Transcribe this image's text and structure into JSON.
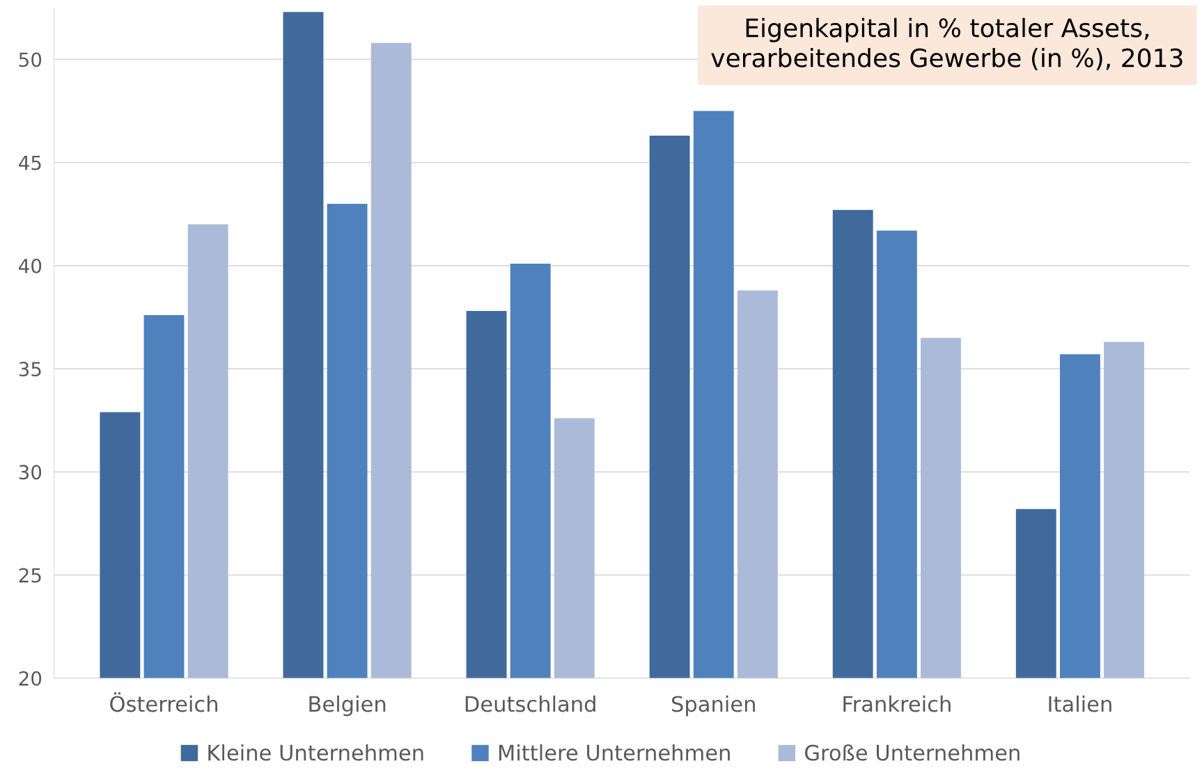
{
  "chart_data": {
    "type": "bar",
    "title": "Eigenkapital in % totaler Assets,\nverarbeitendes Gewerbe (in %), 2013",
    "categories": [
      "Österreich",
      "Belgien",
      "Deutschland",
      "Spanien",
      "Frankreich",
      "Italien"
    ],
    "series": [
      {
        "name": "Kleine Unternehmen",
        "color": "#3f6a9b",
        "values": [
          32.9,
          52.3,
          37.8,
          46.3,
          42.7,
          28.2
        ]
      },
      {
        "name": "Mittlere Unternehmen",
        "color": "#4f81bd",
        "values": [
          37.6,
          43.0,
          40.1,
          47.5,
          41.7,
          35.7
        ]
      },
      {
        "name": "Große Unternehmen",
        "color": "#abbad8",
        "values": [
          42.0,
          50.8,
          32.6,
          38.8,
          36.5,
          36.3
        ]
      }
    ],
    "ylim": [
      20,
      52.5
    ],
    "yticks": [
      20,
      25,
      30,
      35,
      40,
      45,
      50
    ],
    "grid": "y",
    "legend": "bottom"
  }
}
